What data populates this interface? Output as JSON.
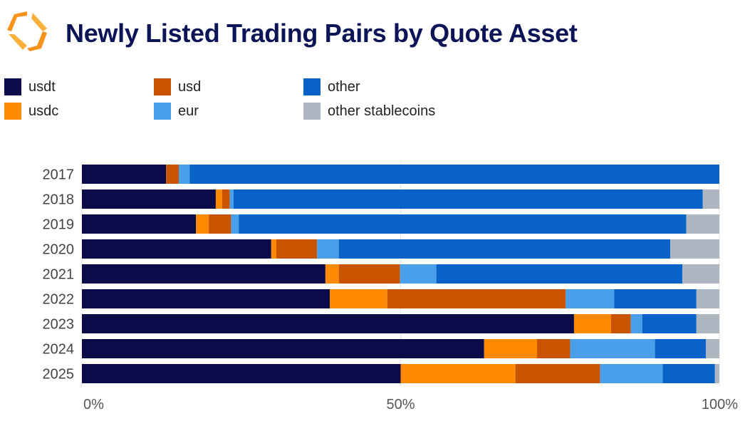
{
  "header": {
    "title": "Newly Listed Trading Pairs by Quote Asset",
    "logo_colors": [
      "#f7931e",
      "#fbb03b"
    ]
  },
  "chart_data": {
    "type": "bar",
    "orientation": "horizontal",
    "stacked": true,
    "normalized": true,
    "title": "Newly Listed Trading Pairs by Quote Asset",
    "categories": [
      "2017",
      "2018",
      "2019",
      "2020",
      "2021",
      "2022",
      "2023",
      "2024",
      "2025"
    ],
    "series": [
      {
        "name": "usdt",
        "color": "#0b0b4a",
        "values": [
          13.2,
          21.0,
          17.9,
          29.7,
          38.2,
          38.9,
          77.2,
          63.1,
          50.0
        ]
      },
      {
        "name": "usdc",
        "color": "#ff8a00",
        "values": [
          0,
          1.0,
          2.0,
          0.8,
          2.1,
          9.0,
          5.8,
          8.3,
          18.0
        ]
      },
      {
        "name": "usd",
        "color": "#c85400",
        "values": [
          2.0,
          1.2,
          3.5,
          6.4,
          9.6,
          28.0,
          3.1,
          5.2,
          13.3
        ]
      },
      {
        "name": "eur",
        "color": "#4a9fea",
        "values": [
          1.7,
          0.6,
          1.2,
          3.4,
          5.7,
          7.6,
          1.8,
          13.3,
          9.8
        ]
      },
      {
        "name": "other",
        "color": "#0862c8",
        "values": [
          83.1,
          73.6,
          70.2,
          52.0,
          38.6,
          12.9,
          8.5,
          8.0,
          8.2
        ]
      },
      {
        "name": "other stablecoins",
        "color": "#aeb6c1",
        "values": [
          0,
          2.6,
          5.2,
          7.7,
          5.8,
          3.6,
          3.6,
          2.1,
          0.7
        ]
      }
    ],
    "xlim": [
      0,
      100
    ],
    "xticks": [
      0,
      50,
      100
    ],
    "xtick_labels": [
      "0%",
      "50%",
      "100%"
    ],
    "grid": true,
    "legend_position": "top-left"
  }
}
